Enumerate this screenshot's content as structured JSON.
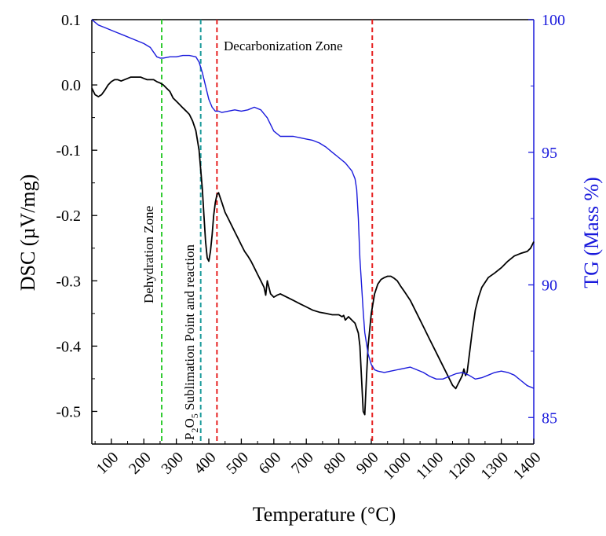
{
  "chart_data": {
    "type": "line",
    "title": "",
    "xlabel": "Temperature (°C)",
    "ylabel_left": "DSC (µV/mg)",
    "ylabel_right": "TG (Mass %)",
    "xlim": [
      40,
      1400
    ],
    "ylim_left": [
      -0.55,
      0.1
    ],
    "ylim_right": [
      84,
      100
    ],
    "x_ticks": [
      100,
      200,
      300,
      400,
      500,
      600,
      700,
      800,
      900,
      1000,
      1100,
      1200,
      1300,
      1400
    ],
    "y_left_ticks": [
      0.1,
      0.0,
      -0.1,
      -0.2,
      -0.3,
      -0.4,
      -0.5
    ],
    "y_left_tick_labels": [
      "0.1",
      "0.0",
      "-0.1",
      "-0.2",
      "-0.3",
      "-0.4",
      "-0.5"
    ],
    "y_right_ticks": [
      100,
      95,
      90,
      85
    ],
    "grid": false,
    "colors": {
      "dsc": "#000000",
      "tg": "#1a1adc",
      "right_axis": "#1a1adc"
    },
    "series": [
      {
        "axis": "left",
        "x": [
          40,
          50,
          60,
          70,
          80,
          90,
          100,
          110,
          120,
          130,
          140,
          150,
          160,
          170,
          180,
          190,
          200,
          210,
          220,
          230,
          240,
          250,
          260,
          270,
          280,
          290,
          300,
          310,
          320,
          330,
          340,
          350,
          360,
          370,
          375,
          380,
          385,
          390,
          395,
          400,
          405,
          410,
          415,
          420,
          425,
          430,
          440,
          450,
          460,
          470,
          480,
          490,
          500,
          510,
          520,
          530,
          540,
          550,
          560,
          570,
          575,
          580,
          585,
          590,
          600,
          610,
          620,
          640,
          660,
          680,
          700,
          720,
          740,
          760,
          780,
          800,
          810,
          815,
          820,
          830,
          840,
          850,
          860,
          865,
          870,
          875,
          880,
          885,
          890,
          900,
          910,
          920,
          930,
          940,
          950,
          960,
          970,
          980,
          990,
          1000,
          1020,
          1040,
          1060,
          1080,
          1100,
          1120,
          1140,
          1150,
          1160,
          1170,
          1180,
          1185,
          1190,
          1195,
          1200,
          1210,
          1220,
          1230,
          1240,
          1260,
          1280,
          1300,
          1320,
          1340,
          1360,
          1380,
          1390,
          1400
        ],
        "y": [
          -0.005,
          -0.015,
          -0.018,
          -0.015,
          -0.008,
          0.0,
          0.005,
          0.008,
          0.008,
          0.006,
          0.008,
          0.01,
          0.012,
          0.012,
          0.012,
          0.012,
          0.01,
          0.008,
          0.008,
          0.008,
          0.005,
          0.003,
          0.0,
          -0.005,
          -0.01,
          -0.02,
          -0.025,
          -0.03,
          -0.035,
          -0.04,
          -0.045,
          -0.055,
          -0.07,
          -0.1,
          -0.13,
          -0.16,
          -0.2,
          -0.24,
          -0.265,
          -0.27,
          -0.255,
          -0.23,
          -0.2,
          -0.18,
          -0.168,
          -0.165,
          -0.18,
          -0.195,
          -0.205,
          -0.215,
          -0.225,
          -0.235,
          -0.245,
          -0.255,
          -0.262,
          -0.27,
          -0.28,
          -0.29,
          -0.3,
          -0.31,
          -0.322,
          -0.3,
          -0.31,
          -0.32,
          -0.325,
          -0.322,
          -0.32,
          -0.325,
          -0.33,
          -0.335,
          -0.34,
          -0.345,
          -0.348,
          -0.35,
          -0.352,
          -0.352,
          -0.355,
          -0.353,
          -0.36,
          -0.355,
          -0.36,
          -0.365,
          -0.38,
          -0.4,
          -0.45,
          -0.5,
          -0.505,
          -0.45,
          -0.4,
          -0.35,
          -0.32,
          -0.305,
          -0.298,
          -0.295,
          -0.293,
          -0.293,
          -0.296,
          -0.3,
          -0.308,
          -0.315,
          -0.33,
          -0.35,
          -0.37,
          -0.39,
          -0.41,
          -0.43,
          -0.45,
          -0.46,
          -0.465,
          -0.455,
          -0.445,
          -0.435,
          -0.445,
          -0.44,
          -0.42,
          -0.38,
          -0.345,
          -0.325,
          -0.31,
          -0.295,
          -0.288,
          -0.28,
          -0.27,
          -0.262,
          -0.258,
          -0.255,
          -0.25,
          -0.24
        ]
      },
      {
        "axis": "right",
        "x": [
          40,
          60,
          80,
          100,
          120,
          140,
          160,
          180,
          200,
          220,
          240,
          250,
          260,
          280,
          300,
          320,
          340,
          360,
          370,
          380,
          390,
          400,
          410,
          420,
          430,
          440,
          460,
          480,
          500,
          520,
          540,
          560,
          580,
          600,
          620,
          640,
          660,
          680,
          700,
          720,
          740,
          760,
          780,
          800,
          820,
          840,
          850,
          855,
          860,
          865,
          870,
          875,
          880,
          890,
          900,
          910,
          920,
          940,
          960,
          980,
          1000,
          1020,
          1040,
          1060,
          1080,
          1100,
          1120,
          1140,
          1160,
          1180,
          1200,
          1220,
          1240,
          1260,
          1280,
          1300,
          1320,
          1340,
          1360,
          1380,
          1400
        ],
        "y": [
          100.0,
          99.8,
          99.7,
          99.6,
          99.5,
          99.4,
          99.3,
          99.2,
          99.1,
          98.95,
          98.6,
          98.55,
          98.55,
          98.6,
          98.6,
          98.65,
          98.65,
          98.6,
          98.4,
          98.0,
          97.5,
          97.0,
          96.7,
          96.55,
          96.55,
          96.5,
          96.55,
          96.6,
          96.55,
          96.6,
          96.7,
          96.6,
          96.3,
          95.8,
          95.6,
          95.6,
          95.6,
          95.55,
          95.5,
          95.45,
          95.35,
          95.2,
          95.0,
          94.8,
          94.6,
          94.3,
          94.0,
          93.6,
          92.5,
          91.0,
          90.0,
          89.0,
          88.2,
          87.4,
          87.0,
          86.8,
          86.75,
          86.7,
          86.75,
          86.8,
          86.85,
          86.9,
          86.8,
          86.7,
          86.55,
          86.45,
          86.45,
          86.55,
          86.65,
          86.7,
          86.6,
          86.45,
          86.5,
          86.6,
          86.7,
          86.75,
          86.7,
          86.6,
          86.4,
          86.2,
          86.1
        ]
      }
    ],
    "vlines": [
      {
        "x": 255,
        "color": "#33cc33"
      },
      {
        "x": 375,
        "color": "#1a9a9a"
      },
      {
        "x": 425,
        "color": "#e62020"
      },
      {
        "x": 903,
        "color": "#e62020"
      }
    ],
    "annotations": {
      "dehydration": "Dehydration Zone",
      "p2o5_p": "P",
      "p2o5_sub2": "2",
      "p2o5_o": "O",
      "p2o5_sub5": "5",
      "p2o5_rest": " Sublimation Point and reaction",
      "decarb": "Decarbonization Zone"
    }
  }
}
